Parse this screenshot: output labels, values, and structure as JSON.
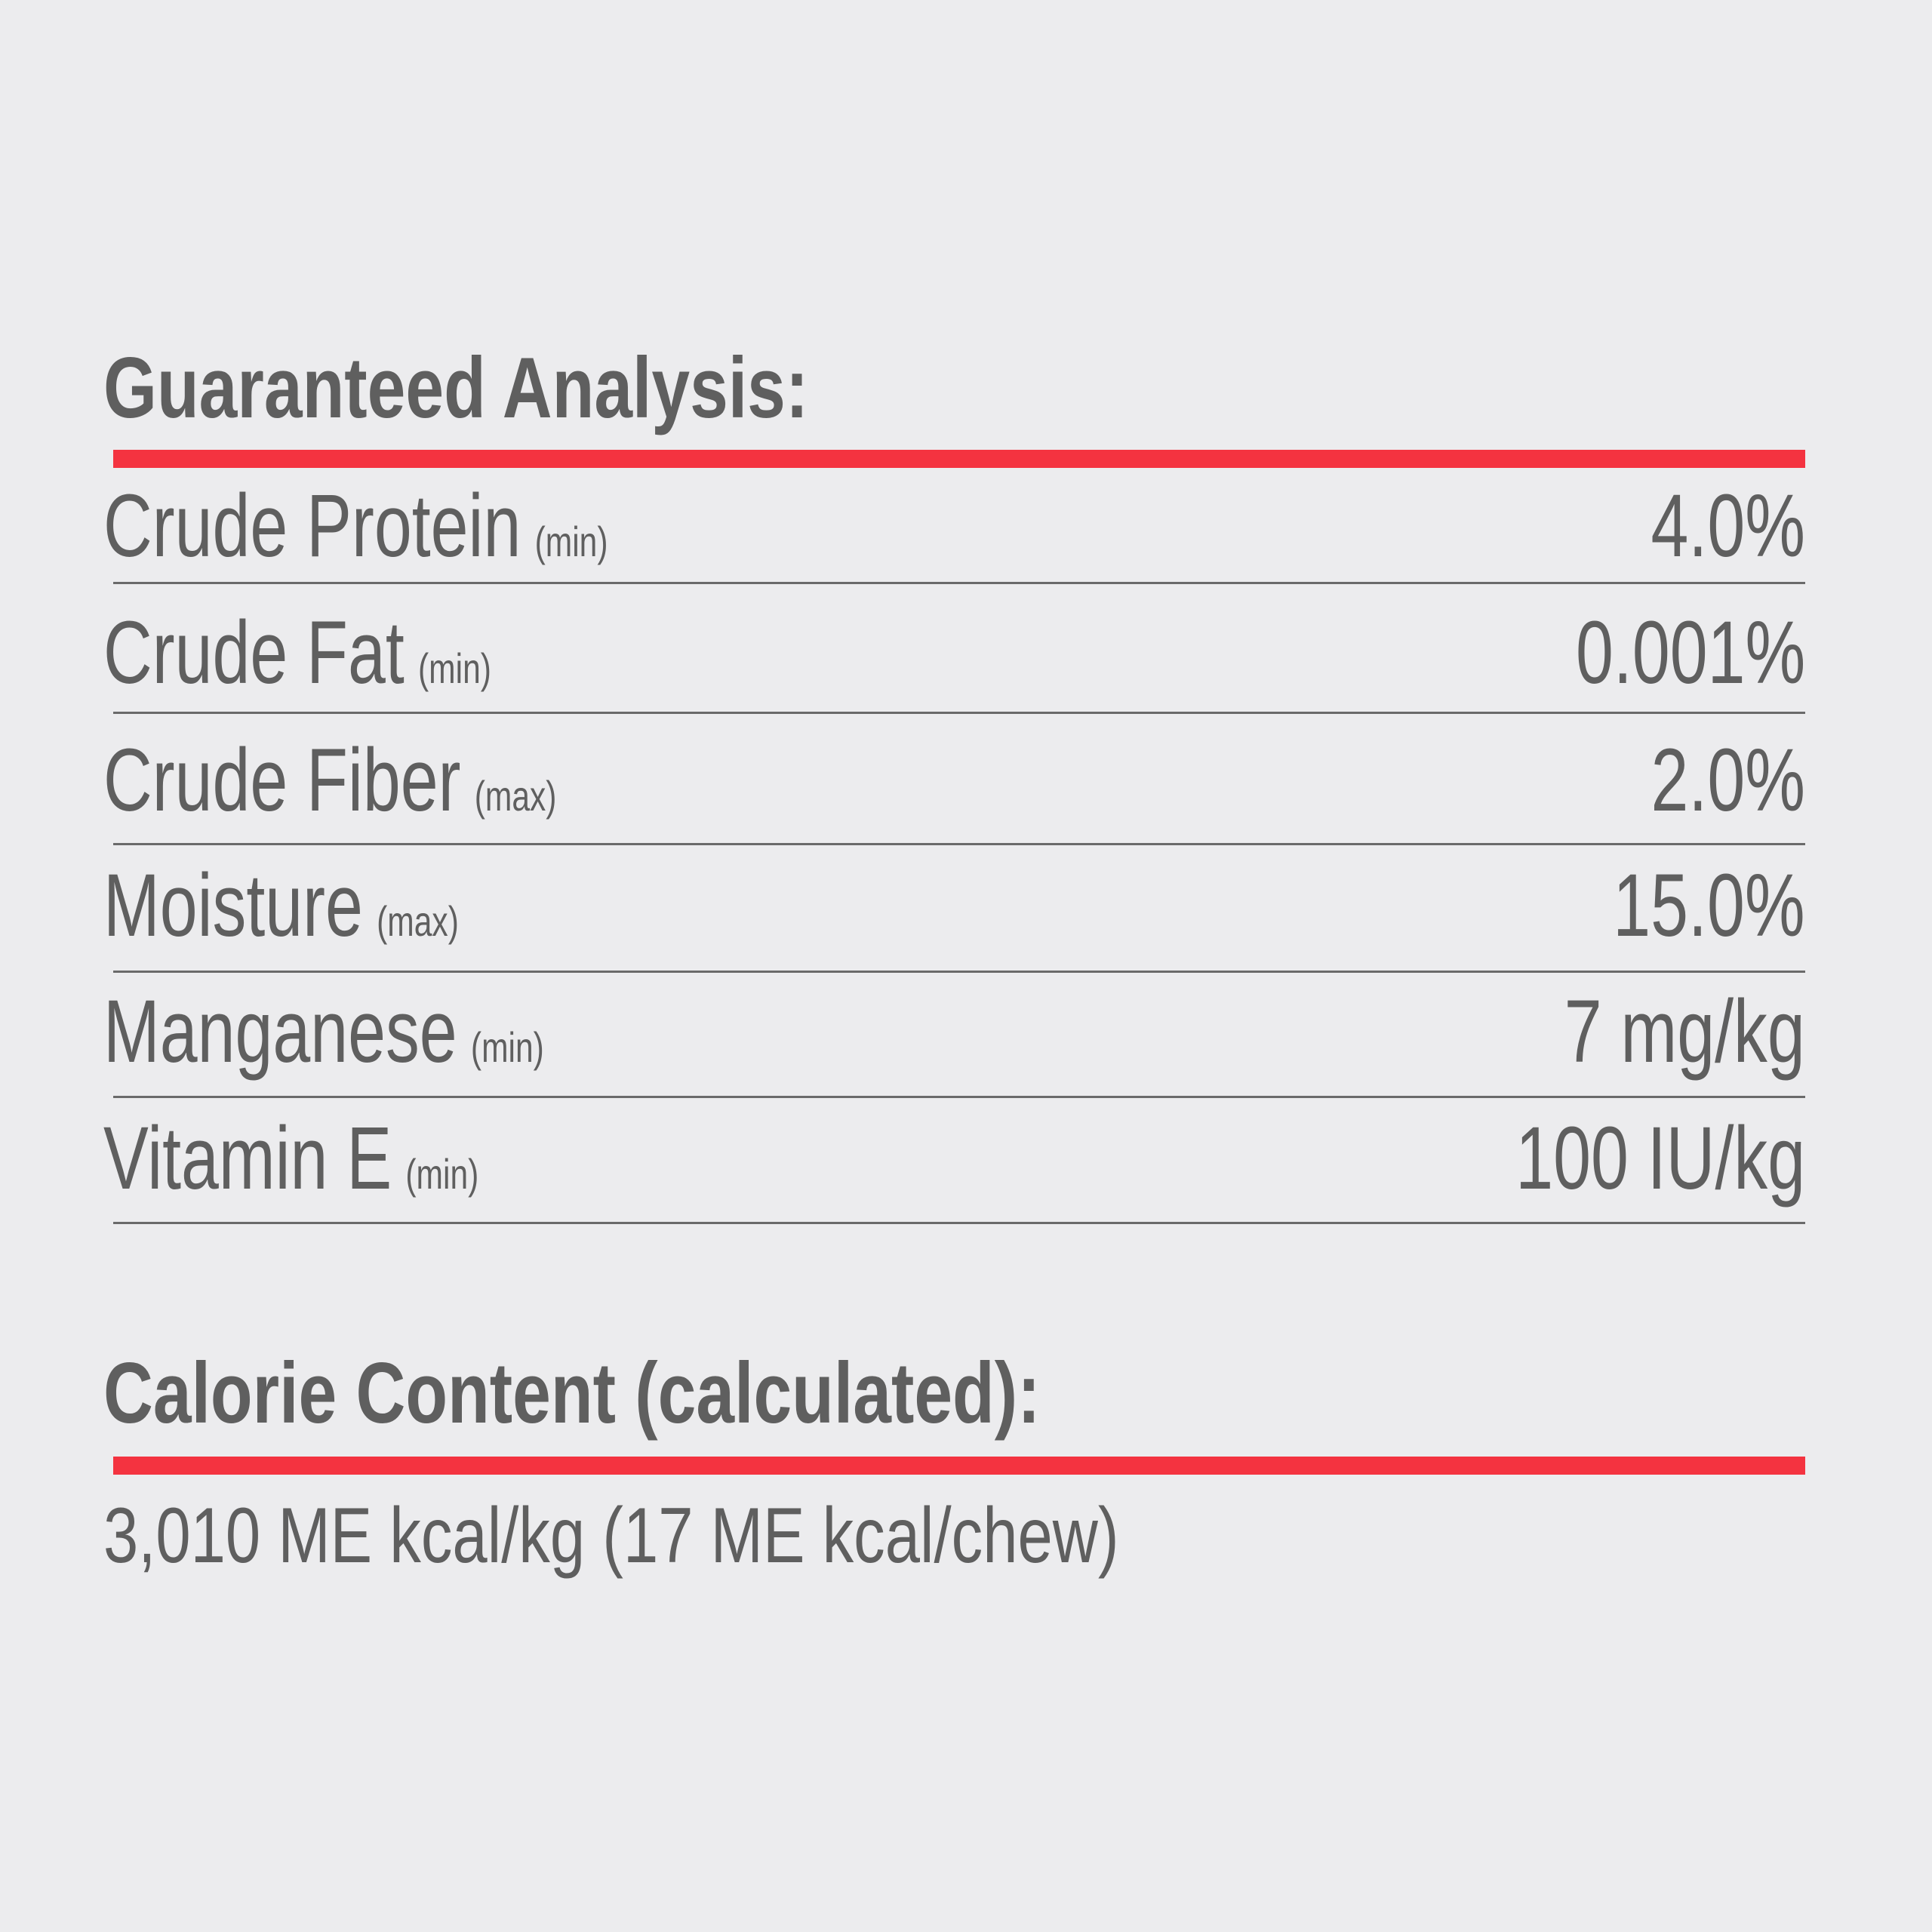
{
  "colors": {
    "text": "#5f5f5f",
    "accent_bar": "#f43340",
    "background": "#ececee",
    "divider": "#6a6a6a"
  },
  "guaranteed_analysis": {
    "title": "Guaranteed Analysis:",
    "rows": [
      {
        "label": "Crude Protein",
        "qualifier": "(min)",
        "value": "4.0%"
      },
      {
        "label": "Crude Fat",
        "qualifier": "(min)",
        "value": "0.001%"
      },
      {
        "label": "Crude Fiber",
        "qualifier": "(max)",
        "value": "2.0%"
      },
      {
        "label": "Moisture",
        "qualifier": "(max)",
        "value": "15.0%"
      },
      {
        "label": "Manganese",
        "qualifier": "(min)",
        "value": "7 mg/kg"
      },
      {
        "label": "Vitamin E",
        "qualifier": "(min)",
        "value": "100 IU/kg"
      }
    ]
  },
  "calorie_content": {
    "title": "Calorie Content (calculated):",
    "value": "3,010 ME kcal/kg (17 ME kcal/chew)"
  }
}
